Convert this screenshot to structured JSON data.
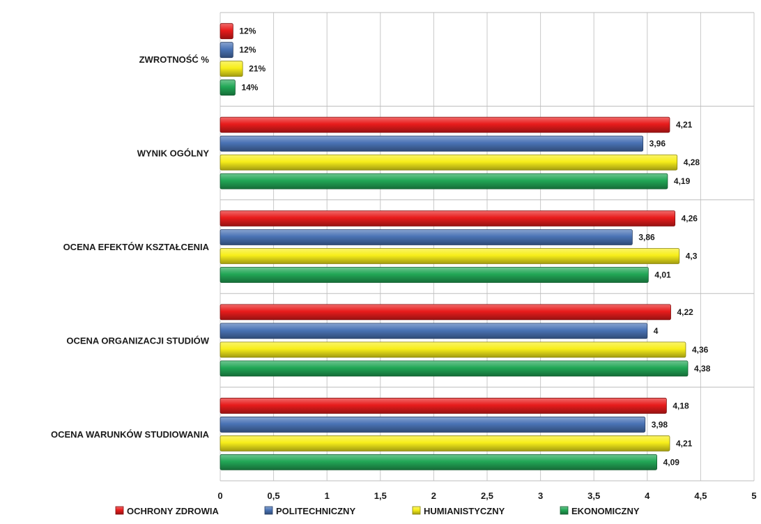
{
  "chart_data": {
    "type": "bar",
    "orientation": "horizontal",
    "categories": [
      "ZWROTNOŚĆ %",
      "WYNIK OGÓLNY",
      "OCENA EFEKTÓW KSZTAŁCENIA",
      "OCENA ORGANIZACJI STUDIÓW",
      "OCENA WARUNKÓW STUDIOWANIA"
    ],
    "series": [
      {
        "name": "OCHRONY ZDROWIA",
        "color": "#e81c1c",
        "values": [
          0.12,
          4.21,
          4.26,
          4.22,
          4.18
        ],
        "labels": [
          "12%",
          "4,21",
          "4,26",
          "4,22",
          "4,18"
        ]
      },
      {
        "name": "POLITECHNICZNY",
        "color": "#4a73b5",
        "values": [
          0.12,
          3.96,
          3.86,
          4.0,
          3.98
        ],
        "labels": [
          "12%",
          "3,96",
          "3,86",
          "4",
          "3,98"
        ]
      },
      {
        "name": "HUMIANISTYCZNY",
        "color": "#f7ee1a",
        "values": [
          0.21,
          4.28,
          4.3,
          4.36,
          4.21
        ],
        "labels": [
          "21%",
          "4,28",
          "4,3",
          "4,36",
          "4,21"
        ]
      },
      {
        "name": "EKONOMICZNY",
        "color": "#22a756",
        "values": [
          0.14,
          4.19,
          4.01,
          4.38,
          4.09
        ],
        "labels": [
          "14%",
          "4,19",
          "4,01",
          "4,38",
          "4,09"
        ]
      }
    ],
    "xlim": [
      0,
      5
    ],
    "xticks": [
      0,
      0.5,
      1,
      1.5,
      2,
      2.5,
      3,
      3.5,
      4,
      4.5,
      5
    ],
    "xtick_labels": [
      "0",
      "0,5",
      "1",
      "1,5",
      "2",
      "2,5",
      "3",
      "3,5",
      "4",
      "4,5",
      "5"
    ],
    "grid": true,
    "legend_position": "bottom"
  }
}
